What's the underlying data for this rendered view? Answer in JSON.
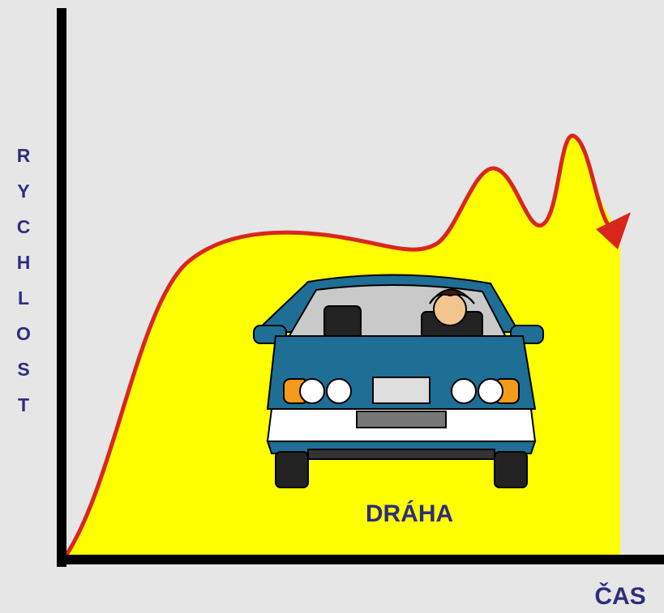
{
  "y_axis_label": "RYCHLOST",
  "x_axis_label": "ČAS",
  "area_label": "DRÁHA"
}
